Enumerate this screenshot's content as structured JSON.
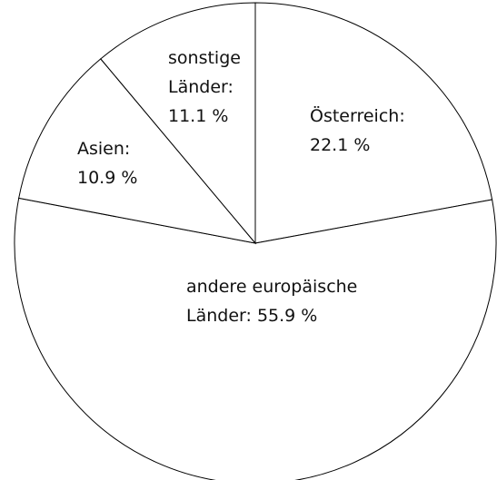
{
  "chart_data": {
    "type": "pie",
    "categories": [
      "Österreich:",
      "andere europäische Länder:",
      "Asien:",
      "sonstige Länder:"
    ],
    "values": [
      22.1,
      55.9,
      10.9,
      11.1
    ],
    "value_labels": [
      "22.1 %",
      "55.9 %",
      "10.9 %",
      "11.1 %"
    ],
    "color": "#ffffff",
    "edge_color": "#000000"
  }
}
